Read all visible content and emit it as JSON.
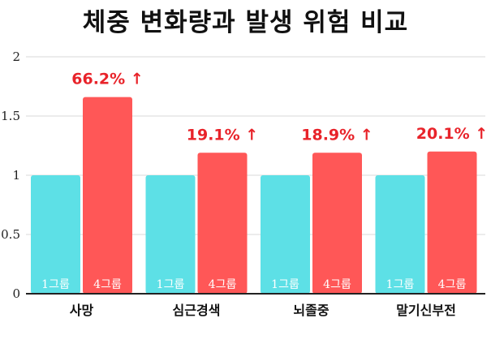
{
  "title": "체중 변화량과 발생 위험 비교",
  "colors": {
    "group1": "#5de0e6",
    "group4": "#ff5757",
    "annotation": "#e8232a",
    "grid": "#d9d9d9",
    "axis": "#222222"
  },
  "chart_data": {
    "type": "bar",
    "title": "체중 변화량과 발생 위험 비교",
    "categories": [
      "사망",
      "심근경색",
      "뇌졸중",
      "말기신부전"
    ],
    "series": [
      {
        "name": "1그룹",
        "values": [
          1,
          1,
          1,
          1
        ]
      },
      {
        "name": "4그룹",
        "values": [
          1.66,
          1.19,
          1.19,
          1.2
        ]
      }
    ],
    "bar_labels": [
      [
        "1그룹",
        "4그룹"
      ],
      [
        "1그룹",
        "4그룹"
      ],
      [
        "1그룹",
        "4그룹"
      ],
      [
        "1그룹",
        "4그룹"
      ]
    ],
    "annotations": [
      "66.2% ↑",
      "19.1% ↑",
      "18.9% ↑",
      "20.1% ↑"
    ],
    "yticks": [
      "0",
      "0.5",
      "1",
      "1.5",
      "2"
    ],
    "ylim": [
      0,
      2
    ],
    "grid": true,
    "legend": "none"
  }
}
